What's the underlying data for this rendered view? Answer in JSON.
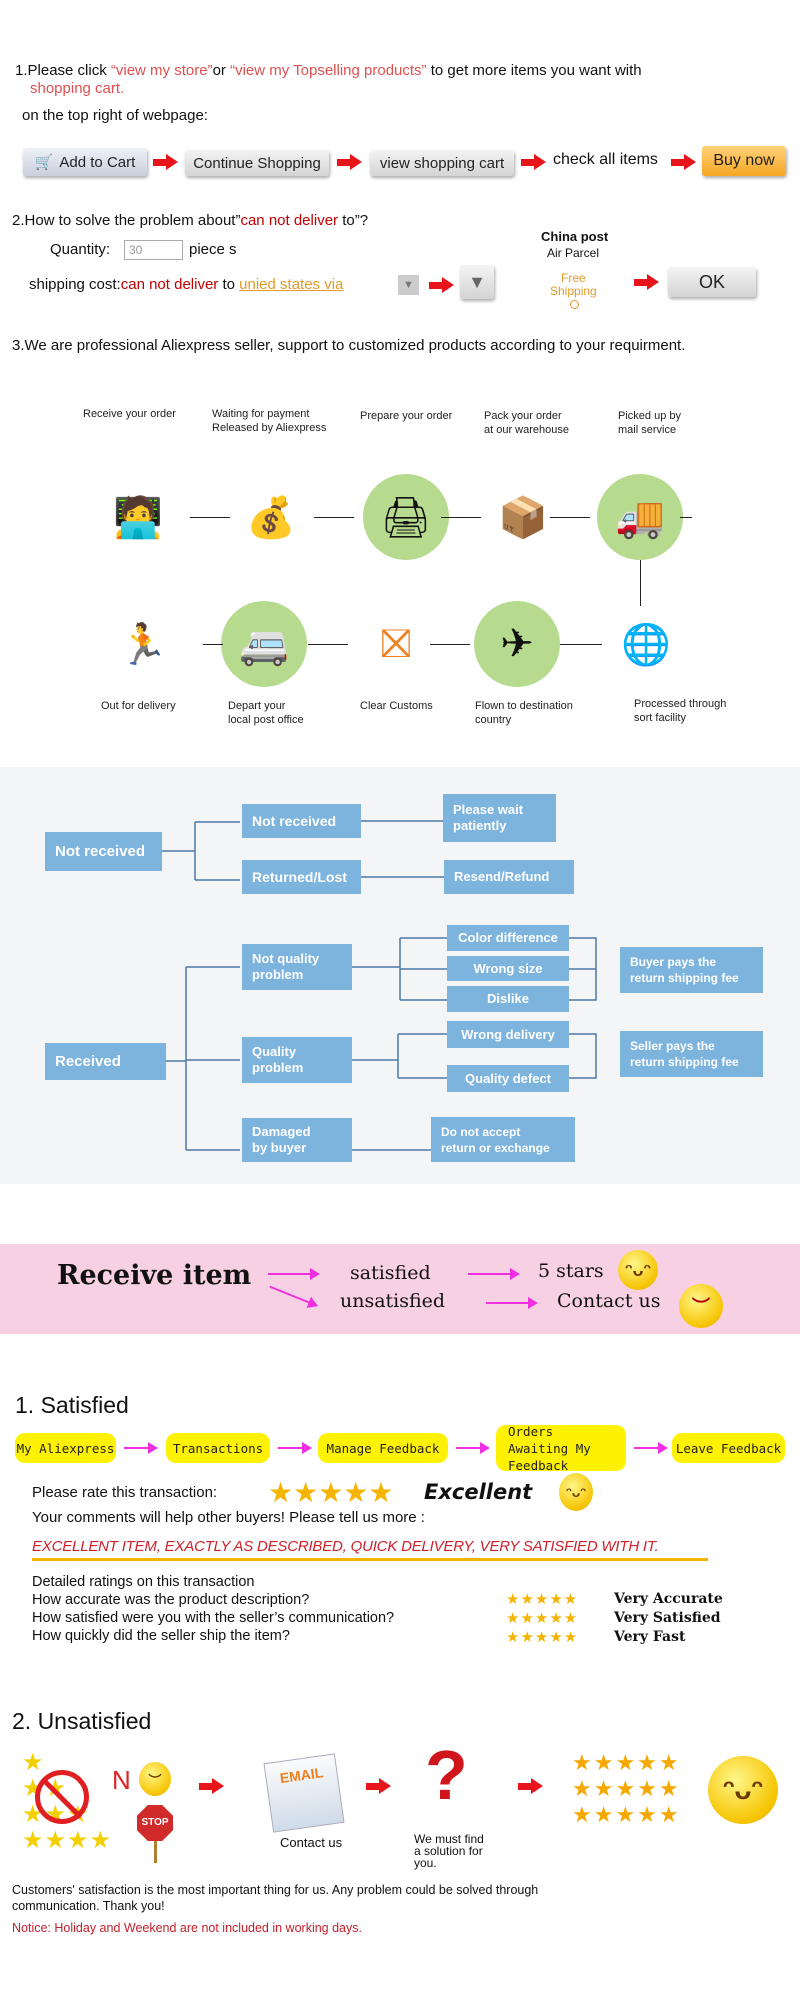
{
  "step1": {
    "prefix": "1.Please click ",
    "link1": "“view my store”",
    "mid": "or ",
    "link2": "“view my Topselling products”",
    "suffix": " to get more items you want with",
    "link3": "shopping cart.",
    "line2": "on the top right of webpage:",
    "flow": {
      "add_to_cart": "Add to Cart",
      "continue_shopping": "Continue Shopping",
      "view_cart": "view shopping cart",
      "check_all": "check all items",
      "buy_now": "Buy now"
    }
  },
  "step2": {
    "title_prefix": "2.How to solve the problem about”",
    "title_red": "can not deliver",
    "title_suffix": " to”?",
    "quantity_label": "Quantity:",
    "quantity_value": "30",
    "quantity_unit": "piece s",
    "shipping_label": "shipping cost:",
    "shipping_error": "can not deliver",
    "shipping_to": " to ",
    "shipping_link": "unied states via",
    "china_post": "China post",
    "air_parcel": "Air Parcel",
    "free": "Free",
    "shipping": "Shipping",
    "ok": "OK"
  },
  "step3": {
    "text": "3.We are professional Aliexpress seller, support to customized products according to your requirment."
  },
  "process": {
    "top": [
      {
        "l1": "Receive your order",
        "l2": "",
        "icon": "computer-user-icon"
      },
      {
        "l1": "Waiting for payment",
        "l2": "Released by Aliexpress",
        "icon": "money-bag-icon"
      },
      {
        "l1": "Prepare your order",
        "l2": "",
        "icon": "printer-icon"
      },
      {
        "l1": "Pack your order",
        "l2": "at our warehouse",
        "icon": "packer-icon"
      },
      {
        "l1": "Picked up by",
        "l2": "mail service",
        "icon": "truck-icon"
      }
    ],
    "bottom": [
      {
        "l1": "Out for delivery",
        "l2": "",
        "icon": "courier-icon"
      },
      {
        "l1": "Depart your",
        "l2": "local post office",
        "icon": "van-icon"
      },
      {
        "l1": "Clear Customs",
        "l2": "",
        "icon": "customs-icon"
      },
      {
        "l1": "Flown to destination",
        "l2": "country",
        "icon": "airplane-icon"
      },
      {
        "l1": "Processed through",
        "l2": "sort facility",
        "icon": "globe-mail-icon"
      }
    ]
  },
  "tree": {
    "not_received": "Not received",
    "not_received_sub": "Not received",
    "please_wait": [
      "Please wait",
      "patiently"
    ],
    "returned_lost": "Returned/Lost",
    "resend_refund": "Resend/Refund",
    "received": "Received",
    "not_quality": [
      "Not quality",
      "problem"
    ],
    "quality": [
      "Quality",
      "problem"
    ],
    "damaged": [
      "Damaged",
      "by buyer"
    ],
    "color_diff": "Color difference",
    "wrong_size": "Wrong size",
    "dislike": "Dislike",
    "wrong_delivery": "Wrong delivery",
    "quality_defect": "Quality defect",
    "buyer_pays": [
      "Buyer pays the",
      "return shipping fee"
    ],
    "seller_pays": [
      "Seller pays the",
      "return shipping fee"
    ],
    "no_accept": [
      "Do not accept",
      "return or exchange"
    ]
  },
  "banner": {
    "receive": "Receive item",
    "satisfied": "satisfied",
    "unsatisfied": "unsatisfied",
    "five_stars": "5 stars",
    "contact": "Contact us"
  },
  "satisfied": {
    "title": "1. Satisfied",
    "steps": [
      "My Aliexpress",
      "Transactions",
      "Manage Feedback",
      "Orders Awaiting My Feedback",
      "Leave Feedback"
    ],
    "rate_label": "Please rate this transaction:",
    "rating_stars": 5,
    "rating_word": "Excellent",
    "comments_label": "Your comments will help other buyers! Please tell us more :",
    "comment": "EXCELLENT ITEM, EXACTLY AS DESCRIBED, QUICK DELIVERY, VERY SATISFIED WITH IT.",
    "detailed_title": "Detailed ratings on this transaction",
    "questions": [
      {
        "q": "How accurate was the product description?",
        "a": "Very Accurate",
        "stars": 5
      },
      {
        "q": "How satisfied were you with the seller’s communication?",
        "a": "Very Satisfied",
        "stars": 5
      },
      {
        "q": "How quickly did the seller ship the item?",
        "a": "Very Fast",
        "stars": 5
      }
    ]
  },
  "unsatisfied": {
    "title": "2. Unsatisfied",
    "n_letter": "N",
    "stop": "STOP",
    "email": "EMAIL",
    "contact": "Contact us",
    "solution": [
      "We must find",
      "a solution for",
      "you."
    ],
    "footer1": "Customers' satisfaction is the most important thing for us. Any problem could be solved through",
    "footer2": "communication. Thank you!",
    "notice": "Notice: Holiday and Weekend are not included in working days."
  },
  "colors": {
    "accent_red": "#e8141b",
    "box_blue": "#7db4de",
    "pink_banner": "#f7d0e3",
    "pill_yellow": "#fff200",
    "magenta": "#f030e0"
  }
}
